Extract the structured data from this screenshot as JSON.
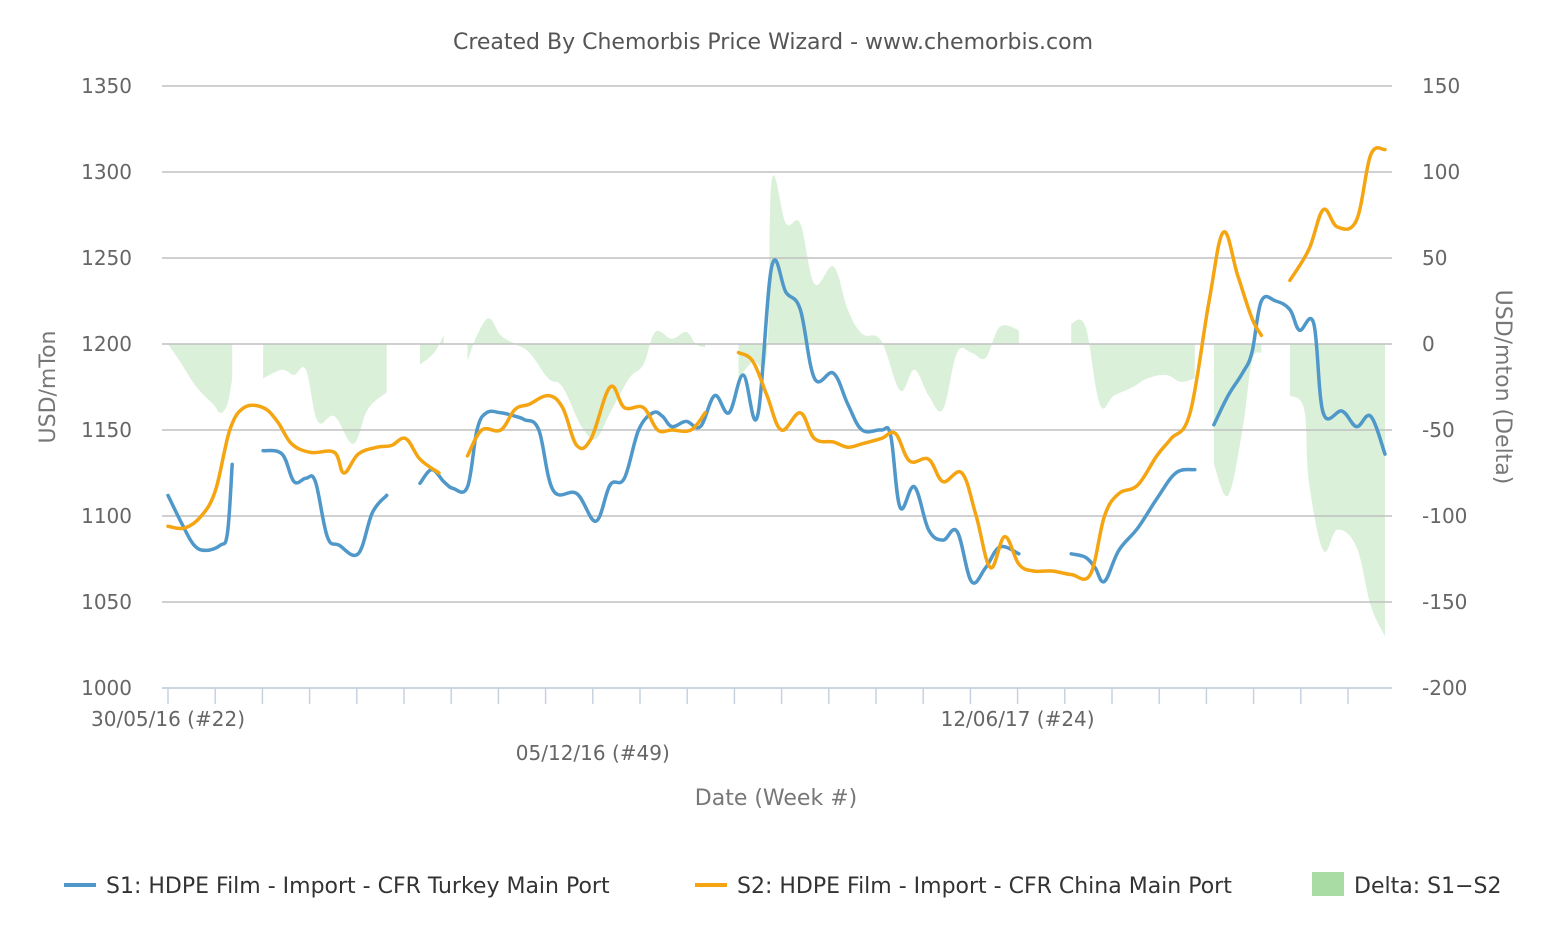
{
  "colors": {
    "s1": "#4f98c9",
    "s2": "#f5a412",
    "delta": "#a8dca4"
  },
  "chart_data": {
    "type": "line",
    "title": "Created By Chemorbis Price Wizard - www.chemorbis.com",
    "xlabel": "Date (Week #)",
    "ylabel": "USD/mTon",
    "y2label": "USD/mton (Delta)",
    "ylim": [
      1000,
      1350
    ],
    "y2lim": [
      -200,
      150
    ],
    "yticks": [
      "1000",
      "1050",
      "1100",
      "1150",
      "1200",
      "1250",
      "1300",
      "1350"
    ],
    "y2ticks": [
      "-200",
      "-150",
      "-100",
      "-50",
      "0",
      "50",
      "100",
      "150"
    ],
    "x_tick_labels": [
      "30/05/16 (#22)",
      "05/12/16 (#49)",
      "12/06/17 (#24)"
    ],
    "x_tick_label_index": [
      0,
      9,
      18
    ],
    "x_range": [
      0,
      26
    ],
    "grid": true,
    "legend_position": "bottom",
    "series": [
      {
        "name": "S1: HDPE Film - Import - CFR Turkey Main Port",
        "type": "line",
        "axis": "left",
        "segments": [
          [
            [
              0,
              1112
            ],
            [
              0.3,
              1095
            ],
            [
              0.55,
              1083
            ],
            [
              0.8,
              1080
            ],
            [
              1.1,
              1083
            ],
            [
              1.25,
              1090
            ],
            [
              1.35,
              1130
            ]
          ],
          [
            [
              2,
              1138
            ],
            [
              2.4,
              1136
            ],
            [
              2.65,
              1120
            ],
            [
              2.9,
              1122
            ],
            [
              3.1,
              1120
            ],
            [
              3.35,
              1088
            ],
            [
              3.6,
              1083
            ],
            [
              4.0,
              1078
            ],
            [
              4.3,
              1102
            ],
            [
              4.6,
              1112
            ]
          ],
          [
            [
              5.3,
              1119
            ],
            [
              5.55,
              1127
            ],
            [
              5.8,
              1120
            ],
            [
              6.0,
              1116
            ],
            [
              6.3,
              1117
            ],
            [
              6.5,
              1150
            ],
            [
              6.7,
              1160
            ],
            [
              7.0,
              1160
            ],
            [
              7.3,
              1158
            ],
            [
              7.5,
              1156
            ],
            [
              7.8,
              1150
            ],
            [
              8.1,
              1115
            ],
            [
              8.6,
              1113
            ],
            [
              9.0,
              1097
            ],
            [
              9.3,
              1118
            ],
            [
              9.6,
              1122
            ],
            [
              9.9,
              1150
            ],
            [
              10.2,
              1160
            ],
            [
              10.4,
              1158
            ],
            [
              10.6,
              1152
            ],
            [
              10.9,
              1155
            ],
            [
              11.2,
              1152
            ],
            [
              11.5,
              1170
            ],
            [
              11.8,
              1160
            ],
            [
              12.1,
              1182
            ],
            [
              12.4,
              1158
            ],
            [
              12.7,
              1245
            ],
            [
              13.0,
              1230
            ],
            [
              13.3,
              1220
            ],
            [
              13.6,
              1180
            ],
            [
              14.0,
              1183
            ],
            [
              14.3,
              1165
            ],
            [
              14.6,
              1150
            ],
            [
              15.0,
              1150
            ],
            [
              15.2,
              1147
            ],
            [
              15.4,
              1105
            ],
            [
              15.7,
              1117
            ],
            [
              16.0,
              1092
            ],
            [
              16.3,
              1086
            ],
            [
              16.6,
              1091
            ],
            [
              16.9,
              1062
            ],
            [
              17.2,
              1070
            ],
            [
              17.5,
              1082
            ],
            [
              17.9,
              1078
            ]
          ],
          [
            [
              19,
              1078
            ],
            [
              19.3,
              1076
            ],
            [
              19.5,
              1070
            ],
            [
              19.7,
              1062
            ],
            [
              20.0,
              1080
            ],
            [
              20.4,
              1093
            ],
            [
              20.8,
              1110
            ],
            [
              21.2,
              1125
            ],
            [
              21.6,
              1127
            ]
          ],
          [
            [
              22,
              1153
            ],
            [
              22.3,
              1170
            ],
            [
              22.6,
              1183
            ],
            [
              22.8,
              1195
            ],
            [
              23.0,
              1225
            ],
            [
              23.3,
              1225
            ],
            [
              23.6,
              1220
            ],
            [
              23.8,
              1208
            ],
            [
              24.1,
              1212
            ],
            [
              24.3,
              1160
            ],
            [
              24.7,
              1161
            ],
            [
              25.0,
              1152
            ],
            [
              25.3,
              1158
            ],
            [
              25.6,
              1136
            ]
          ]
        ]
      },
      {
        "name": "S2: HDPE Film - Import - CFR China Main Port",
        "type": "line",
        "axis": "left",
        "segments": [
          [
            [
              0,
              1094
            ],
            [
              0.35,
              1093
            ],
            [
              0.7,
              1100
            ],
            [
              1.0,
              1115
            ],
            [
              1.3,
              1150
            ],
            [
              1.6,
              1163
            ],
            [
              2.0,
              1163
            ],
            [
              2.3,
              1155
            ],
            [
              2.6,
              1142
            ],
            [
              3.0,
              1137
            ],
            [
              3.5,
              1137
            ],
            [
              3.7,
              1125
            ],
            [
              4.0,
              1136
            ],
            [
              4.4,
              1140
            ],
            [
              4.7,
              1141
            ],
            [
              5.0,
              1145
            ],
            [
              5.3,
              1133
            ],
            [
              5.7,
              1125
            ]
          ],
          [
            [
              6.3,
              1135
            ],
            [
              6.6,
              1150
            ],
            [
              7.0,
              1150
            ],
            [
              7.3,
              1162
            ],
            [
              7.6,
              1165
            ],
            [
              8.0,
              1170
            ],
            [
              8.3,
              1163
            ],
            [
              8.6,
              1141
            ],
            [
              8.9,
              1145
            ],
            [
              9.3,
              1175
            ],
            [
              9.6,
              1163
            ],
            [
              10.0,
              1163
            ],
            [
              10.3,
              1150
            ],
            [
              10.6,
              1150
            ],
            [
              11.0,
              1150
            ],
            [
              11.3,
              1160
            ]
          ],
          [
            [
              12.0,
              1195
            ],
            [
              12.3,
              1190
            ],
            [
              12.6,
              1170
            ],
            [
              12.9,
              1150
            ],
            [
              13.3,
              1160
            ],
            [
              13.6,
              1145
            ],
            [
              14.0,
              1143
            ],
            [
              14.3,
              1140
            ],
            [
              14.6,
              1142
            ],
            [
              15.0,
              1145
            ],
            [
              15.3,
              1148
            ],
            [
              15.6,
              1132
            ],
            [
              16.0,
              1133
            ],
            [
              16.3,
              1120
            ],
            [
              16.7,
              1125
            ],
            [
              17.0,
              1100
            ],
            [
              17.3,
              1070
            ],
            [
              17.6,
              1088
            ],
            [
              17.9,
              1072
            ],
            [
              18.2,
              1068
            ],
            [
              18.6,
              1068
            ],
            [
              19.0,
              1066
            ],
            [
              19.4,
              1066
            ],
            [
              19.7,
              1100
            ],
            [
              20.0,
              1113
            ],
            [
              20.4,
              1118
            ],
            [
              20.8,
              1135
            ],
            [
              21.1,
              1145
            ],
            [
              21.5,
              1160
            ],
            [
              21.9,
              1225
            ],
            [
              22.2,
              1265
            ],
            [
              22.5,
              1240
            ],
            [
              22.8,
              1215
            ],
            [
              23.0,
              1205
            ]
          ],
          [
            [
              23.6,
              1237
            ],
            [
              24.0,
              1255
            ],
            [
              24.3,
              1278
            ],
            [
              24.6,
              1268
            ],
            [
              25.0,
              1272
            ],
            [
              25.3,
              1310
            ],
            [
              25.6,
              1313
            ]
          ]
        ]
      },
      {
        "name": "Delta: S1−S2",
        "type": "area",
        "axis": "right",
        "segments": [
          [
            [
              0,
              0
            ],
            [
              0.25,
              -10
            ],
            [
              0.6,
              -25
            ],
            [
              0.95,
              -35
            ],
            [
              1.1,
              -40
            ],
            [
              1.25,
              -35
            ],
            [
              1.35,
              -20
            ]
          ],
          [
            [
              2,
              -20
            ],
            [
              2.4,
              -15
            ],
            [
              2.65,
              -18
            ],
            [
              2.9,
              -15
            ],
            [
              3.15,
              -45
            ],
            [
              3.5,
              -42
            ],
            [
              3.9,
              -58
            ],
            [
              4.2,
              -38
            ],
            [
              4.6,
              -28
            ]
          ],
          [
            [
              5.3,
              -12
            ],
            [
              5.6,
              -5
            ],
            [
              5.8,
              5
            ]
          ],
          [
            [
              6.3,
              -10
            ],
            [
              6.5,
              5
            ],
            [
              6.75,
              15
            ],
            [
              7.0,
              5
            ],
            [
              7.3,
              0
            ],
            [
              7.6,
              -5
            ],
            [
              8.0,
              -20
            ],
            [
              8.3,
              -25
            ],
            [
              8.7,
              -48
            ],
            [
              9.0,
              -55
            ],
            [
              9.3,
              -40
            ],
            [
              9.7,
              -20
            ],
            [
              10.0,
              -12
            ],
            [
              10.25,
              7
            ],
            [
              10.6,
              3
            ],
            [
              10.9,
              7
            ],
            [
              11.1,
              0
            ],
            [
              11.3,
              -2
            ]
          ],
          [
            [
              12.0,
              -20
            ],
            [
              12.3,
              -10
            ],
            [
              12.6,
              -5
            ],
            [
              12.7,
              95
            ],
            [
              13.0,
              70
            ],
            [
              13.3,
              70
            ],
            [
              13.6,
              35
            ],
            [
              14.0,
              45
            ],
            [
              14.3,
              20
            ],
            [
              14.6,
              6
            ],
            [
              15.0,
              2
            ],
            [
              15.4,
              -27
            ],
            [
              15.7,
              -15
            ],
            [
              16.0,
              -30
            ],
            [
              16.3,
              -38
            ],
            [
              16.6,
              -5
            ],
            [
              16.9,
              -5
            ],
            [
              17.2,
              -8
            ],
            [
              17.5,
              10
            ],
            [
              17.9,
              8
            ]
          ],
          [
            [
              19.0,
              12
            ],
            [
              19.3,
              10
            ],
            [
              19.6,
              -35
            ],
            [
              19.9,
              -30
            ],
            [
              20.3,
              -25
            ],
            [
              20.6,
              -20
            ],
            [
              21.0,
              -18
            ],
            [
              21.3,
              -22
            ],
            [
              21.6,
              -20
            ]
          ],
          [
            [
              22.0,
              -70
            ],
            [
              22.3,
              -88
            ],
            [
              22.6,
              -50
            ],
            [
              22.8,
              -10
            ],
            [
              23.0,
              -5
            ]
          ],
          [
            [
              23.6,
              -30
            ],
            [
              23.9,
              -38
            ],
            [
              24.0,
              -80
            ],
            [
              24.3,
              -120
            ],
            [
              24.6,
              -108
            ],
            [
              25.0,
              -118
            ],
            [
              25.3,
              -152
            ],
            [
              25.6,
              -170
            ]
          ]
        ]
      }
    ]
  }
}
